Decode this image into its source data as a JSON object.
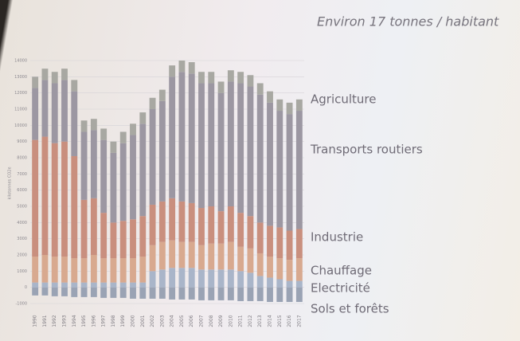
{
  "chart_data": {
    "type": "stacked-bar",
    "annotation": "Environ 17 tonnes / habitant",
    "y_label": "kilotonnes CO2e",
    "categories": [
      "1990",
      "1991",
      "1992",
      "1993",
      "1994",
      "1995",
      "1996",
      "1997",
      "1998",
      "1999",
      "2000",
      "2001",
      "2002",
      "2003",
      "2004",
      "2005",
      "2006",
      "2007",
      "2008",
      "2009",
      "2010",
      "2011",
      "2012",
      "2013",
      "2014",
      "2015",
      "2016",
      "2017"
    ],
    "ylim": [
      -1000,
      14000
    ],
    "yticks": [
      -1000,
      0,
      1000,
      2000,
      3000,
      4000,
      5000,
      6000,
      7000,
      8000,
      9000,
      10000,
      11000,
      12000,
      13000,
      14000
    ],
    "grid": true,
    "series": [
      {
        "name": "Sols et forêts",
        "color": "#9aa3b4",
        "values": [
          -500,
          -500,
          -550,
          -550,
          -600,
          -600,
          -600,
          -650,
          -650,
          -650,
          -700,
          -700,
          -700,
          -700,
          -750,
          -750,
          -750,
          -800,
          -800,
          -800,
          -800,
          -850,
          -850,
          -850,
          -900,
          -900,
          -900,
          -900
        ]
      },
      {
        "name": "Electricité",
        "color": "#a9b5c9",
        "values": [
          300,
          300,
          300,
          300,
          300,
          300,
          300,
          300,
          300,
          300,
          300,
          300,
          1000,
          1100,
          1200,
          1200,
          1200,
          1100,
          1100,
          1100,
          1100,
          1000,
          900,
          700,
          600,
          500,
          400,
          400
        ]
      },
      {
        "name": "Chauffage",
        "color": "#d8a98f",
        "values": [
          1600,
          1700,
          1600,
          1600,
          1500,
          1500,
          1700,
          1500,
          1500,
          1500,
          1500,
          1600,
          1600,
          1700,
          1700,
          1600,
          1600,
          1500,
          1600,
          1600,
          1700,
          1500,
          1500,
          1400,
          1300,
          1300,
          1300,
          1400
        ]
      },
      {
        "name": "Industrie",
        "color": "#c98f7e",
        "values": [
          7200,
          7300,
          7000,
          7100,
          6300,
          3600,
          3500,
          2800,
          2200,
          2300,
          2400,
          2500,
          2500,
          2500,
          2600,
          2500,
          2400,
          2300,
          2300,
          2000,
          2200,
          2100,
          2000,
          1900,
          1900,
          1900,
          1800,
          1800
        ]
      },
      {
        "name": "Transports routiers",
        "color": "#9c97a2",
        "values": [
          3200,
          3500,
          3700,
          3800,
          4000,
          4200,
          4200,
          4500,
          4300,
          4800,
          5200,
          5700,
          5900,
          6200,
          7500,
          8000,
          8000,
          7700,
          7600,
          7300,
          7700,
          8000,
          8000,
          7900,
          7600,
          7200,
          7200,
          7300
        ]
      },
      {
        "name": "Agriculture",
        "color": "#a8a8a2",
        "values": [
          700,
          700,
          700,
          700,
          700,
          700,
          700,
          700,
          700,
          700,
          700,
          700,
          700,
          700,
          700,
          700,
          700,
          700,
          700,
          700,
          700,
          700,
          700,
          700,
          700,
          700,
          700,
          700
        ]
      }
    ]
  }
}
